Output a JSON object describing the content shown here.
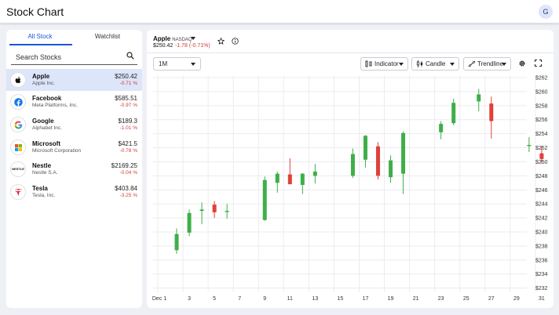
{
  "app": {
    "title": "Stock Chart",
    "avatar_initial": "G"
  },
  "tabs": [
    "All Stock",
    "Watchlist"
  ],
  "search": {
    "placeholder": "Search Stocks"
  },
  "stocks": [
    {
      "name": "Apple",
      "company": "Apple Inc.",
      "price": "$250.42",
      "change": "-0.71 %",
      "logo": "apple-icon"
    },
    {
      "name": "Facebook",
      "company": "Meta Platforms, Inc.",
      "price": "$585.51",
      "change": "-0.97 %",
      "logo": "facebook-icon"
    },
    {
      "name": "Google",
      "company": "Alphabet Inc.",
      "price": "$189.3",
      "change": "-1.01 %",
      "logo": "google-icon"
    },
    {
      "name": "Microsoft",
      "company": "Microsoft Corporation",
      "price": "$421.5",
      "change": "-0.78 %",
      "logo": "microsoft-icon"
    },
    {
      "name": "Nestle",
      "company": "Nestle S.A.",
      "price": "$2169.25",
      "change": "-0.04 %",
      "logo": "nestle-logo",
      "logo_text": "NESTLE"
    },
    {
      "name": "Tesla",
      "company": "Tesla, Inc.",
      "price": "$403.84",
      "change": "-3.25 %",
      "logo": "tesla-icon"
    }
  ],
  "header": {
    "symbol": "Apple",
    "exchange": "NASDAQ",
    "price": "$250.42",
    "change": "-1.78 (-0.71%)"
  },
  "toolbar": {
    "range": "1M",
    "indicator": "Indicator",
    "chart_type": "Candle",
    "trendline": "Trendline"
  },
  "colors": {
    "accent": "#1a56d6",
    "up": "#3fae49",
    "down": "#e0403a",
    "negative_text": "#d23b3b"
  },
  "chart_data": {
    "type": "candlestick",
    "x_ticks": [
      "Dec 1",
      "3",
      "5",
      "7",
      "9",
      "11",
      "13",
      "15",
      "17",
      "19",
      "21",
      "23",
      "25",
      "27",
      "29",
      "31"
    ],
    "y_ticks": [
      "$262",
      "$260",
      "$258",
      "$256",
      "$254",
      "$252",
      "$250",
      "$248",
      "$246",
      "$244",
      "$242",
      "$240",
      "$238",
      "$236",
      "$234",
      "$232"
    ],
    "ylim": [
      231.4,
      262
    ],
    "candles": [
      {
        "day": 2,
        "open": 237.4,
        "high": 240.5,
        "low": 236.9,
        "close": 239.7
      },
      {
        "day": 3,
        "open": 239.9,
        "high": 243.2,
        "low": 239.4,
        "close": 242.7
      },
      {
        "day": 4,
        "open": 243.0,
        "high": 244.2,
        "low": 241.1,
        "close": 243.2
      },
      {
        "day": 5,
        "open": 243.9,
        "high": 244.4,
        "low": 242.0,
        "close": 242.8
      },
      {
        "day": 6,
        "open": 243.0,
        "high": 244.0,
        "low": 241.9,
        "close": 243.0
      },
      {
        "day": 9,
        "open": 241.7,
        "high": 247.9,
        "low": 241.6,
        "close": 247.4
      },
      {
        "day": 10,
        "open": 247.0,
        "high": 248.6,
        "low": 245.6,
        "close": 248.3
      },
      {
        "day": 11,
        "open": 248.2,
        "high": 250.5,
        "low": 246.9,
        "close": 246.8
      },
      {
        "day": 12,
        "open": 246.7,
        "high": 248.4,
        "low": 245.4,
        "close": 248.3
      },
      {
        "day": 13,
        "open": 248.0,
        "high": 249.7,
        "low": 246.9,
        "close": 248.6
      },
      {
        "day": 16,
        "open": 248.0,
        "high": 251.9,
        "low": 247.7,
        "close": 251.1
      },
      {
        "day": 17,
        "open": 250.3,
        "high": 253.8,
        "low": 249.2,
        "close": 253.7
      },
      {
        "day": 18,
        "open": 252.2,
        "high": 252.8,
        "low": 247.5,
        "close": 248.0
      },
      {
        "day": 19,
        "open": 247.8,
        "high": 250.9,
        "low": 247.0,
        "close": 250.2
      },
      {
        "day": 20,
        "open": 248.3,
        "high": 254.3,
        "low": 245.4,
        "close": 254.1
      },
      {
        "day": 23,
        "open": 254.2,
        "high": 255.8,
        "low": 253.2,
        "close": 255.4
      },
      {
        "day": 24,
        "open": 255.5,
        "high": 259.0,
        "low": 255.2,
        "close": 258.4
      },
      {
        "day": 26,
        "open": 258.6,
        "high": 260.4,
        "low": 257.2,
        "close": 259.6
      },
      {
        "day": 27,
        "open": 258.3,
        "high": 259.3,
        "low": 253.3,
        "close": 255.8
      },
      {
        "day": 30,
        "open": 252.4,
        "high": 253.5,
        "low": 251.4,
        "close": 252.4
      },
      {
        "day": 31,
        "open": 251.2,
        "high": 252.2,
        "low": 249.8,
        "close": 250.4
      }
    ]
  }
}
